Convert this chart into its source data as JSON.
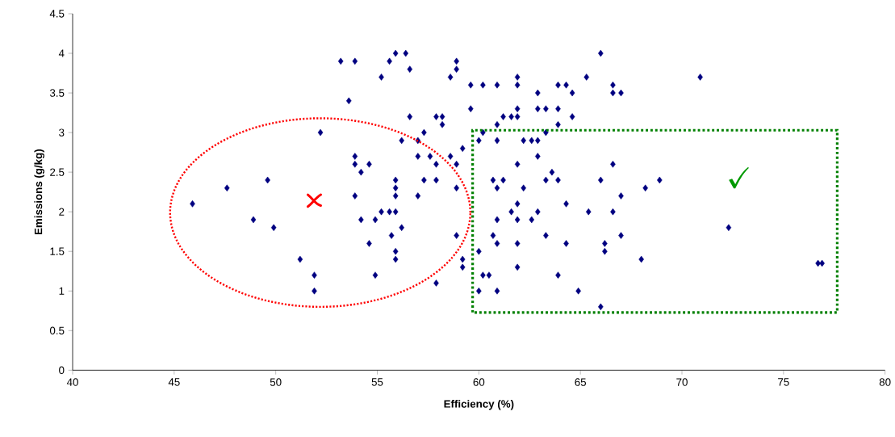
{
  "chart_data": {
    "type": "scatter",
    "xlabel": "Efficiency (%)",
    "ylabel": "Emissions (g/kg)",
    "color": "#000080",
    "marker": "diamond",
    "xlim": [
      40,
      80
    ],
    "ylim": [
      0,
      4.5
    ],
    "xticks": [
      40,
      45,
      50,
      55,
      60,
      65,
      70,
      75,
      80
    ],
    "yticks": [
      0,
      0.5,
      1,
      1.5,
      2,
      2.5,
      3,
      3.5,
      4,
      4.5
    ],
    "x": [
      53.2,
      53.9,
      55.2,
      53.6,
      52.2,
      53.9,
      53.9,
      54.6,
      54.2,
      49.6,
      47.6,
      45.9,
      53.9,
      48.9,
      49.9,
      54.2,
      54.9,
      54.6,
      51.2,
      51.9,
      51.9,
      54.9,
      55.2,
      55.6,
      55.9,
      56.4,
      56.6,
      58.9,
      58.9,
      58.6,
      59.6,
      60.2,
      60.9,
      61.9,
      61.9,
      62.9,
      63.9,
      64.3,
      64.6,
      65.3,
      66.0,
      66.6,
      66.6,
      67.0,
      56.6,
      57.9,
      58.2,
      58.2,
      57.3,
      56.2,
      57.0,
      59.6,
      60.9,
      61.2,
      61.6,
      61.9,
      61.9,
      62.9,
      63.3,
      63.9,
      63.9,
      64.6,
      60.2,
      63.3,
      60.0,
      60.9,
      62.2,
      62.6,
      62.9,
      59.2,
      57.0,
      57.6,
      58.6,
      62.9,
      57.9,
      58.9,
      61.9,
      66.6,
      63.6,
      55.9,
      57.3,
      57.9,
      60.7,
      61.2,
      63.3,
      63.9,
      66.0,
      55.9,
      58.9,
      60.9,
      62.2,
      55.9,
      57.0,
      67.0,
      61.9,
      64.3,
      55.6,
      55.9,
      61.6,
      62.9,
      65.4,
      66.6,
      56.2,
      60.9,
      61.9,
      62.6,
      55.7,
      58.9,
      60.7,
      63.3,
      67.0,
      60.9,
      61.9,
      64.3,
      66.2,
      66.2,
      55.9,
      55.9,
      59.2,
      60.0,
      59.2,
      61.9,
      57.9,
      60.2,
      60.5,
      63.9,
      60.0,
      60.9,
      64.9,
      66.0,
      70.9,
      68.9,
      68.2,
      72.3,
      68.0,
      76.7,
      76.9
    ],
    "values": [
      3.9,
      3.9,
      3.7,
      3.4,
      3.0,
      2.7,
      2.6,
      2.6,
      2.5,
      2.4,
      2.3,
      2.1,
      2.2,
      1.9,
      1.8,
      1.9,
      1.9,
      1.6,
      1.4,
      1.2,
      1.0,
      1.2,
      2.0,
      3.9,
      4.0,
      4.0,
      3.8,
      3.9,
      3.8,
      3.7,
      3.6,
      3.6,
      3.6,
      3.7,
      3.6,
      3.5,
      3.6,
      3.6,
      3.5,
      3.7,
      4.0,
      3.6,
      3.5,
      3.5,
      3.2,
      3.2,
      3.2,
      3.1,
      3.0,
      2.9,
      2.9,
      3.3,
      3.1,
      3.2,
      3.2,
      3.2,
      3.3,
      3.3,
      3.3,
      3.3,
      3.1,
      3.2,
      3.0,
      3.0,
      2.9,
      2.9,
      2.9,
      2.9,
      2.9,
      2.8,
      2.7,
      2.7,
      2.7,
      2.7,
      2.6,
      2.6,
      2.6,
      2.6,
      2.5,
      2.4,
      2.4,
      2.4,
      2.4,
      2.4,
      2.4,
      2.4,
      2.4,
      2.3,
      2.3,
      2.3,
      2.3,
      2.2,
      2.2,
      2.2,
      2.1,
      2.1,
      2.0,
      2.0,
      2.0,
      2.0,
      2.0,
      2.0,
      1.8,
      1.9,
      1.9,
      1.9,
      1.7,
      1.7,
      1.7,
      1.7,
      1.7,
      1.6,
      1.6,
      1.6,
      1.6,
      1.5,
      1.5,
      1.4,
      1.4,
      1.5,
      1.3,
      1.3,
      1.1,
      1.2,
      1.2,
      1.2,
      1.0,
      1.0,
      1.0,
      0.8,
      3.7,
      2.4,
      2.3,
      1.8,
      1.4,
      1.35,
      1.35
    ]
  }
}
